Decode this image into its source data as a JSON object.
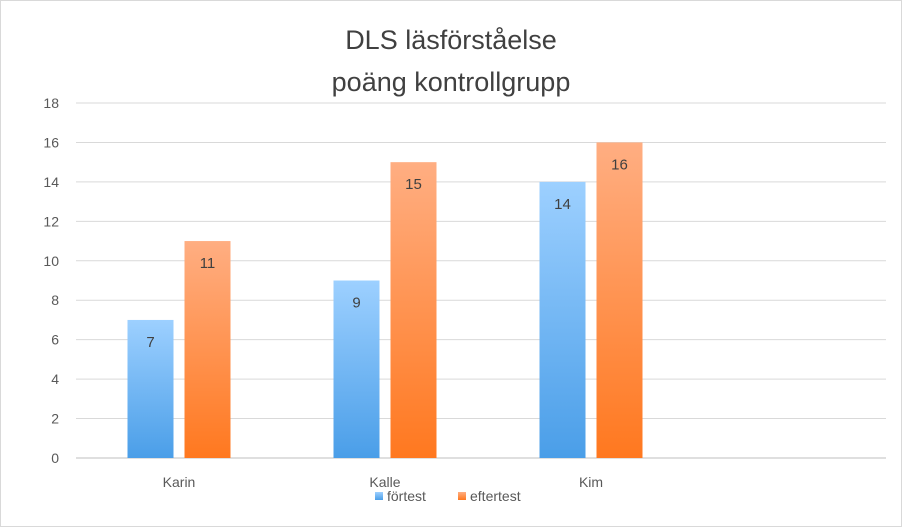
{
  "chart_data": {
    "type": "bar",
    "title_lines": [
      "DLS läsförståelse",
      "poäng kontrollgrupp"
    ],
    "categories": [
      "Karin",
      "Kalle",
      "Kim"
    ],
    "series": [
      {
        "name": "förtest",
        "values": [
          7,
          9,
          14
        ],
        "color_top": "#9dd0ff",
        "color_bottom": "#4a9ee8"
      },
      {
        "name": "eftertest",
        "values": [
          11,
          15,
          16
        ],
        "color_top": "#ffae82",
        "color_bottom": "#ff781f"
      }
    ],
    "ylim": [
      0,
      18
    ],
    "yticks": [
      0,
      2,
      4,
      6,
      8,
      10,
      12,
      14,
      16,
      18
    ],
    "grid": true,
    "legend_position": "bottom",
    "xlabel": "",
    "ylabel": ""
  }
}
